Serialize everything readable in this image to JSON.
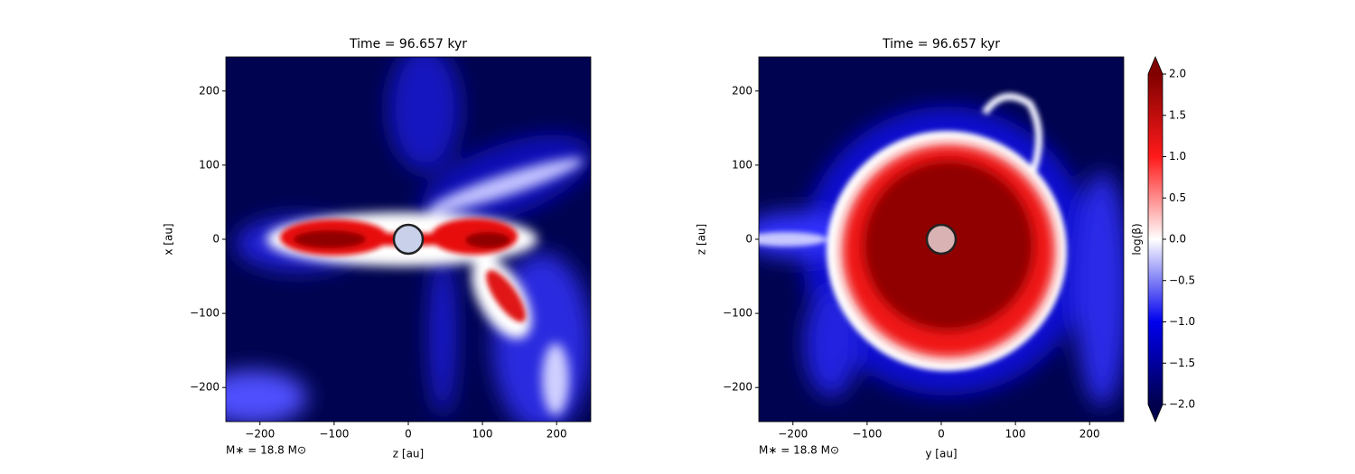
{
  "chart_data": [
    {
      "type": "contour",
      "title": "Time = 96.657 kyr",
      "x_label": "z [au]",
      "y_label": "x [au]",
      "annotation": "M∗ = 18.8 M⊙",
      "xlim": [
        -246,
        246
      ],
      "ylim": [
        -246,
        246
      ],
      "xticks": [
        {
          "value": -200,
          "label": "−200"
        },
        {
          "value": -100,
          "label": "−100"
        },
        0,
        100,
        200
      ],
      "yticks": [
        {
          "value": -200,
          "label": "−200"
        },
        {
          "value": -100,
          "label": "−100"
        },
        0,
        100,
        200
      ]
    },
    {
      "type": "contour",
      "title": "Time = 96.657 kyr",
      "x_label": "y [au]",
      "y_label": "z [au]",
      "annotation": "M∗ = 18.8 M⊙",
      "xlim": [
        -246,
        246
      ],
      "ylim": [
        -246,
        246
      ],
      "xticks": [
        {
          "value": -200,
          "label": "−200"
        },
        {
          "value": -100,
          "label": "−100"
        },
        0,
        100,
        200
      ],
      "yticks": [
        {
          "value": -200,
          "label": "−200"
        },
        {
          "value": -100,
          "label": "−100"
        },
        0,
        100,
        200
      ],
      "colorbar": {
        "label": "log(β)",
        "lim": [
          -2,
          2
        ],
        "ticks": [
          {
            "value": -2,
            "label": "−2.0"
          },
          {
            "value": -1.5,
            "label": "−1.5"
          },
          {
            "value": -1,
            "label": "−1.0"
          },
          {
            "value": -0.5,
            "label": "−0.5"
          },
          {
            "value": 0,
            "label": "0.0"
          },
          {
            "value": 0.5,
            "label": "0.5"
          },
          {
            "value": 1,
            "label": "1.0"
          },
          {
            "value": 1.5,
            "label": "1.5"
          },
          {
            "value": 2,
            "label": "2.0"
          }
        ]
      }
    }
  ]
}
